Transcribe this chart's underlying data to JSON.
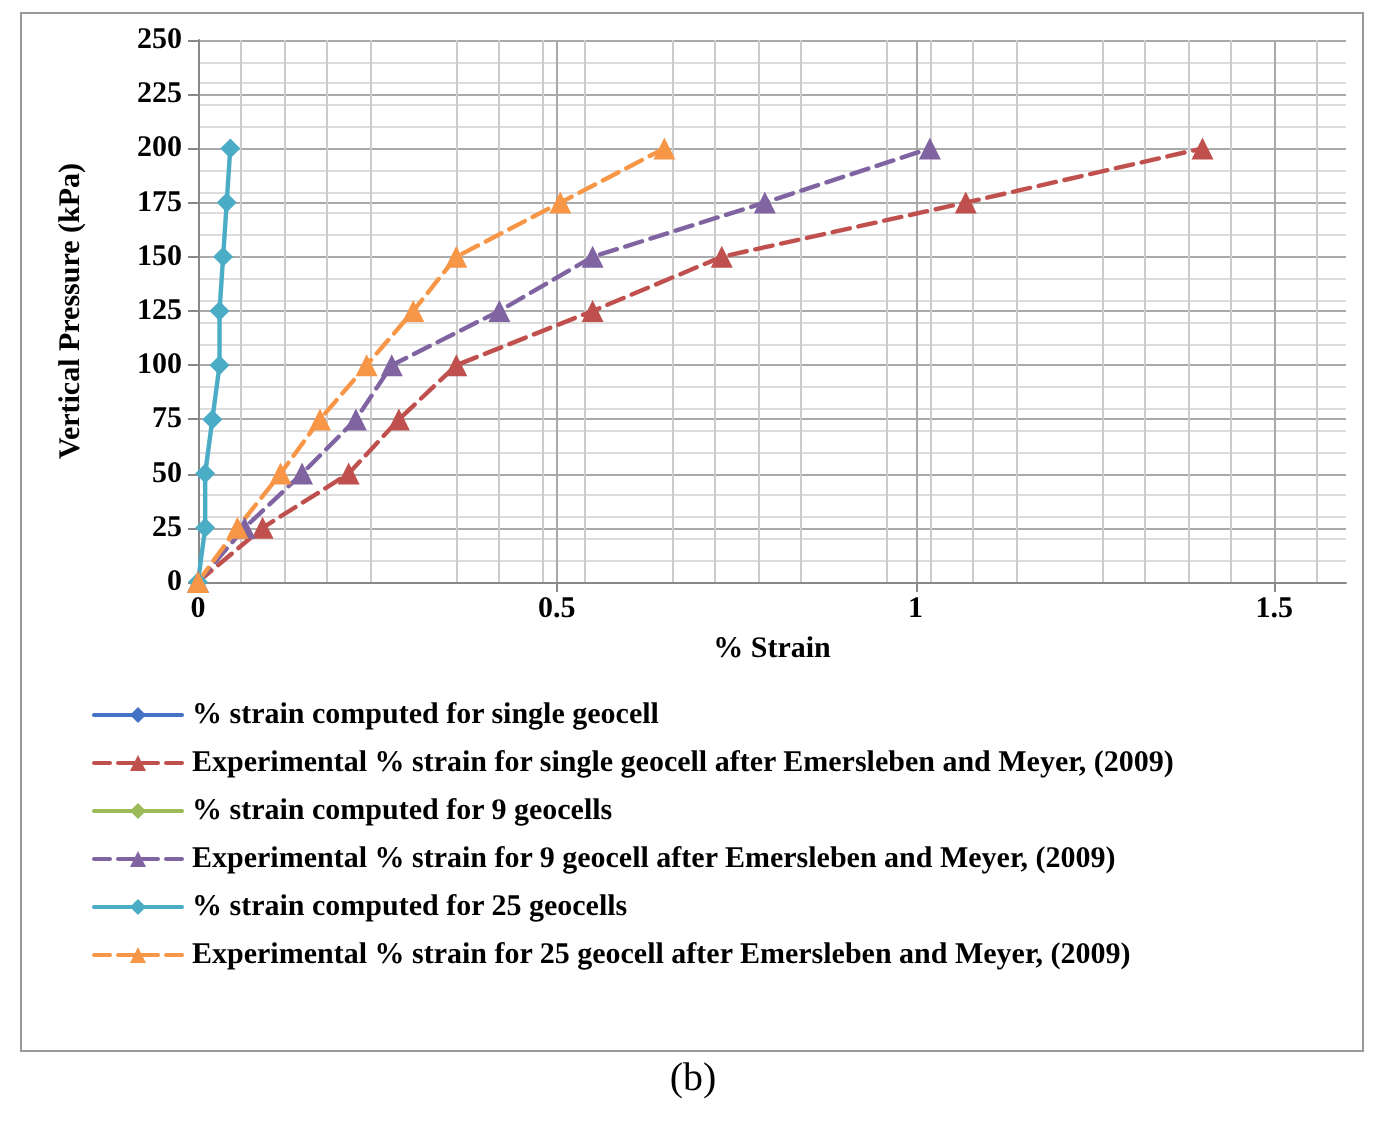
{
  "chart_data": {
    "type": "line",
    "xlabel": "% Strain",
    "ylabel": "Vertical Pressure (kPa)",
    "xlim": [
      0,
      1.6
    ],
    "xticks": [
      0,
      0.5,
      1,
      1.5
    ],
    "ylim": [
      0,
      250
    ],
    "yticks": [
      0,
      25,
      50,
      75,
      100,
      125,
      150,
      175,
      200,
      225,
      250
    ],
    "grid": true,
    "legend": "bottom",
    "annotations": [
      "(b)"
    ],
    "series": [
      {
        "name": "% strain computed for single geocell",
        "color": "#4472c4",
        "marker": "diamond",
        "line_style": "solid",
        "values": [
          null,
          null,
          null,
          null,
          null,
          null,
          null,
          null,
          null
        ]
      },
      {
        "name": "Experimental % strain for single geocell after Emersleben and Meyer, (2009)",
        "color": "#c0504d",
        "marker": "triangle",
        "line_style": "dashed",
        "x": [
          0,
          0.09,
          0.21,
          0.28,
          0.36,
          0.55,
          0.73,
          1.07,
          1.4
        ],
        "values": [
          0,
          25,
          50,
          75,
          100,
          125,
          150,
          175,
          200
        ]
      },
      {
        "name": "% strain computed for 9 geocells",
        "color": "#9bbb59",
        "marker": "diamond",
        "line_style": "solid",
        "values": [
          null,
          null,
          null,
          null,
          null,
          null,
          null,
          null,
          null
        ]
      },
      {
        "name": "Experimental % strain for 9 geocell after Emersleben and Meyer, (2009)",
        "color": "#8064a2",
        "marker": "triangle",
        "line_style": "dashed",
        "x": [
          0,
          0.065,
          0.145,
          0.22,
          0.27,
          0.42,
          0.55,
          0.79,
          1.02
        ],
        "values": [
          0,
          25,
          50,
          75,
          100,
          125,
          150,
          175,
          200
        ]
      },
      {
        "name": "% strain computed for 25 geocells",
        "color": "#4bacc6",
        "marker": "diamond",
        "line_style": "solid",
        "x": [
          0,
          0.01,
          0.01,
          0.02,
          0.03,
          0.03,
          0.035,
          0.04,
          0.045
        ],
        "values": [
          0,
          25,
          50,
          75,
          100,
          125,
          150,
          175,
          200
        ]
      },
      {
        "name": "Experimental % strain for 25 geocell after Emersleben and Meyer, (2009)",
        "color": "#f79646",
        "marker": "triangle",
        "line_style": "dashed",
        "x": [
          0,
          0.055,
          0.115,
          0.17,
          0.235,
          0.3,
          0.36,
          0.505,
          0.65
        ],
        "values": [
          0,
          25,
          50,
          75,
          100,
          125,
          150,
          175,
          200
        ]
      }
    ]
  }
}
